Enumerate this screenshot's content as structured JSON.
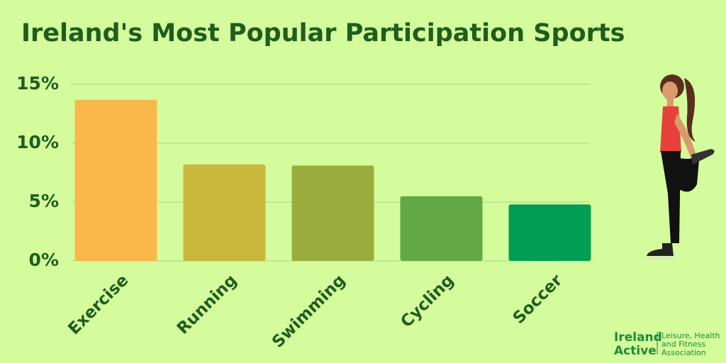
{
  "chart_data": {
    "type": "bar",
    "title": "Ireland's Most Popular Participation Sports",
    "categories": [
      "Exercise",
      "Running",
      "Swimming",
      "Cycling",
      "Soccer"
    ],
    "values": [
      13.7,
      8.2,
      8.1,
      5.5,
      4.8
    ],
    "colors": [
      "#fbb84a",
      "#c9b83c",
      "#9aad3c",
      "#62a845",
      "#009d52"
    ],
    "ylim": [
      0,
      15
    ],
    "yticks": [
      {
        "value": 0,
        "label": "0%"
      },
      {
        "value": 5,
        "label": "5%"
      },
      {
        "value": 10,
        "label": "10%"
      },
      {
        "value": 15,
        "label": "15%"
      }
    ],
    "grid": true
  },
  "logo": {
    "brand_lines": [
      "Ireland",
      "Active"
    ],
    "tagline_lines": [
      "Leisure, Health",
      "and Fitness",
      "Association"
    ]
  }
}
